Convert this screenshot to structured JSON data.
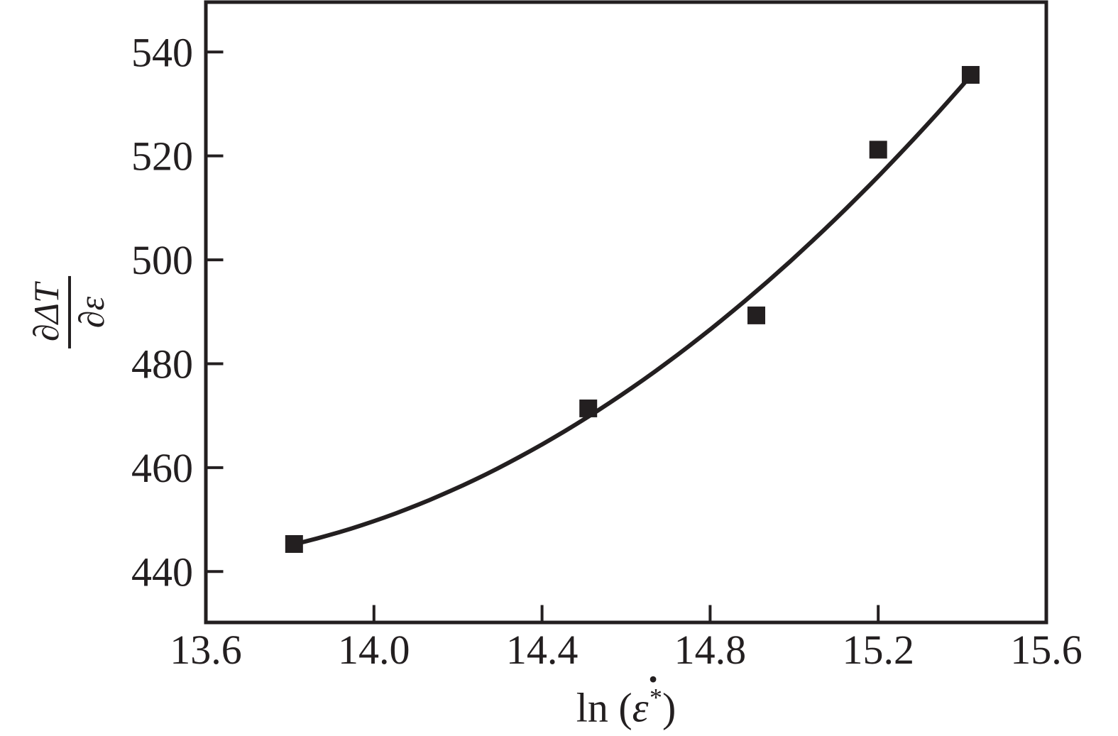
{
  "ink_color": "#231f20",
  "background_color": "#ffffff",
  "chart_data": {
    "type": "scatter",
    "title": "",
    "xlabel": "ln (ε̇*)",
    "xlabel_parts": {
      "prefix": "ln (",
      "symbol": "ε",
      "dot": "˙",
      "sup": "*",
      "suffix": ")"
    },
    "ylabel": {
      "numerator": "∂ΔT",
      "denominator": "∂ε"
    },
    "xlim": [
      13.6,
      15.6
    ],
    "ylim": [
      430.2,
      549.6
    ],
    "x_ticks": [
      13.6,
      14.0,
      14.4,
      14.8,
      15.2,
      15.6
    ],
    "x_tick_labels": [
      "13.6",
      "14.0",
      "14.4",
      "14.8",
      "15.2",
      "15.6"
    ],
    "y_ticks": [
      440,
      460,
      480,
      500,
      520,
      540
    ],
    "y_tick_labels": [
      "440",
      "460",
      "480",
      "500",
      "520",
      "540"
    ],
    "grid": false,
    "legend": null,
    "axis_color": "#231f20",
    "tick_style": "inside",
    "series": [
      {
        "name": "measured points",
        "type": "scatter",
        "marker": "square",
        "color": "#231f20",
        "points": [
          [
            13.81,
            445.3
          ],
          [
            14.51,
            471.4
          ],
          [
            14.91,
            489.3
          ],
          [
            15.2,
            521.2
          ],
          [
            15.42,
            535.6
          ]
        ]
      },
      {
        "name": "fitted curve",
        "type": "line",
        "color": "#231f20",
        "curve": {
          "kind": "quadratic",
          "comment": "value = c + b*(x - t0) + a*(x - t0)^2",
          "t0": 13.6,
          "a": 23.0,
          "b": 9.3,
          "c": 442.3,
          "x_start": 13.81,
          "x_end": 15.42
        }
      }
    ]
  }
}
